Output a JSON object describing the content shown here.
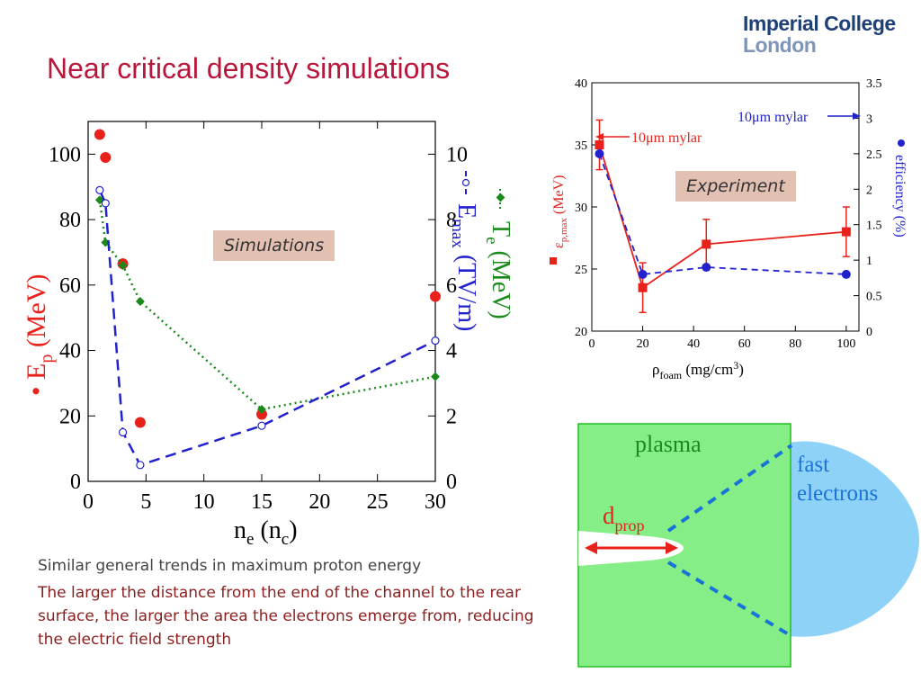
{
  "title": "Near critical density simulations",
  "logo": {
    "line1": "Imperial College",
    "line2": "London"
  },
  "captions": {
    "general": "Similar general trends in maximum proton energy",
    "detail": "The larger the distance from the end of the channel to the rear surface, the larger the area the electrons emerge from, reducing the electric field strength"
  },
  "colors": {
    "title": "#b8163a",
    "red": "#e8221b",
    "blue": "#2222cc",
    "green": "#1a8a1a",
    "plasma": "#86ee86",
    "electrons": "#8fd2f8"
  },
  "chart_data": [
    {
      "type": "scatter",
      "tag": "Simulations",
      "xlabel_main": "n",
      "xlabel_sub1": "e",
      "xlabel_mid": " (n",
      "xlabel_sub2": "c",
      "xlabel_end": ")",
      "xlim": [
        0,
        30
      ],
      "ylim": [
        0,
        110
      ],
      "y2lim": [
        0,
        11
      ],
      "x_ticks": [
        "0",
        "5",
        "10",
        "15",
        "20",
        "25",
        "30"
      ],
      "y_ticks": [
        "0",
        "20",
        "40",
        "60",
        "80",
        "100"
      ],
      "y2_ticks": [
        "0",
        "2",
        "4",
        "6",
        "8",
        "10"
      ],
      "ylabel_left": {
        "bullet": "•",
        "main": "E",
        "sub": "p",
        "rest": " (MeV)"
      },
      "ylabel_right_1": {
        "main": "T",
        "sub": "e",
        "rest": " (MeV)"
      },
      "ylabel_right_2": {
        "main": "E",
        "sub": "max",
        "rest": " (TV/m)"
      },
      "series": [
        {
          "name": "Ep (MeV)",
          "axis": "left",
          "style": "dots",
          "x": [
            1,
            1.5,
            3,
            4.5,
            15,
            30
          ],
          "y": [
            106,
            99,
            66.5,
            18,
            20.5,
            56.5
          ]
        },
        {
          "name": "Te (MeV)",
          "axis": "right",
          "style": "dotted-diamond",
          "x": [
            1,
            1.5,
            3,
            4.5,
            15,
            30
          ],
          "y": [
            8.6,
            7.3,
            6.6,
            5.5,
            2.2,
            3.2
          ]
        },
        {
          "name": "Emax (TV/m)",
          "axis": "right",
          "style": "dashed-circle",
          "x": [
            1,
            1.5,
            3,
            4.5,
            15,
            30
          ],
          "y": [
            8.9,
            8.5,
            1.5,
            0.5,
            1.7,
            4.3
          ]
        }
      ]
    },
    {
      "type": "line",
      "tag": "Experiment",
      "xlabel_main": "ρ",
      "xlabel_sub": "foam",
      "xlabel_rest": " (mg/cm",
      "xlabel_sup": "3",
      "xlabel_end": ")",
      "xlim": [
        0,
        105
      ],
      "ylim": [
        20,
        40
      ],
      "y2lim": [
        0,
        3.5
      ],
      "x_ticks": [
        "0",
        "20",
        "40",
        "60",
        "80",
        "100"
      ],
      "y_ticks": [
        "20",
        "25",
        "30",
        "35",
        "40"
      ],
      "y2_ticks": [
        "0",
        "0.5",
        "1",
        "1.5",
        "2",
        "2.5",
        "3",
        "3.5"
      ],
      "ylabel_left": {
        "main": "ε",
        "sub": "p,max",
        "rest": " (MeV)"
      },
      "ylabel_right": {
        "main": "efficiency (%)"
      },
      "annotations": {
        "red": "10μm mylar",
        "blue": "10μm mylar"
      },
      "series": [
        {
          "name": "εp,max (MeV)",
          "axis": "left",
          "x": [
            3,
            20,
            45,
            100
          ],
          "y": [
            35,
            23.5,
            27,
            28
          ],
          "err": [
            2,
            2,
            2,
            2
          ]
        },
        {
          "name": "efficiency (%)",
          "axis": "right",
          "x": [
            3,
            20,
            45,
            100
          ],
          "y": [
            2.5,
            0.8,
            0.9,
            0.8
          ]
        }
      ]
    }
  ],
  "diagram": {
    "plasma": "plasma",
    "electrons_1": "fast",
    "electrons_2": "electrons",
    "dprop_main": "d",
    "dprop_sub": "prop"
  }
}
